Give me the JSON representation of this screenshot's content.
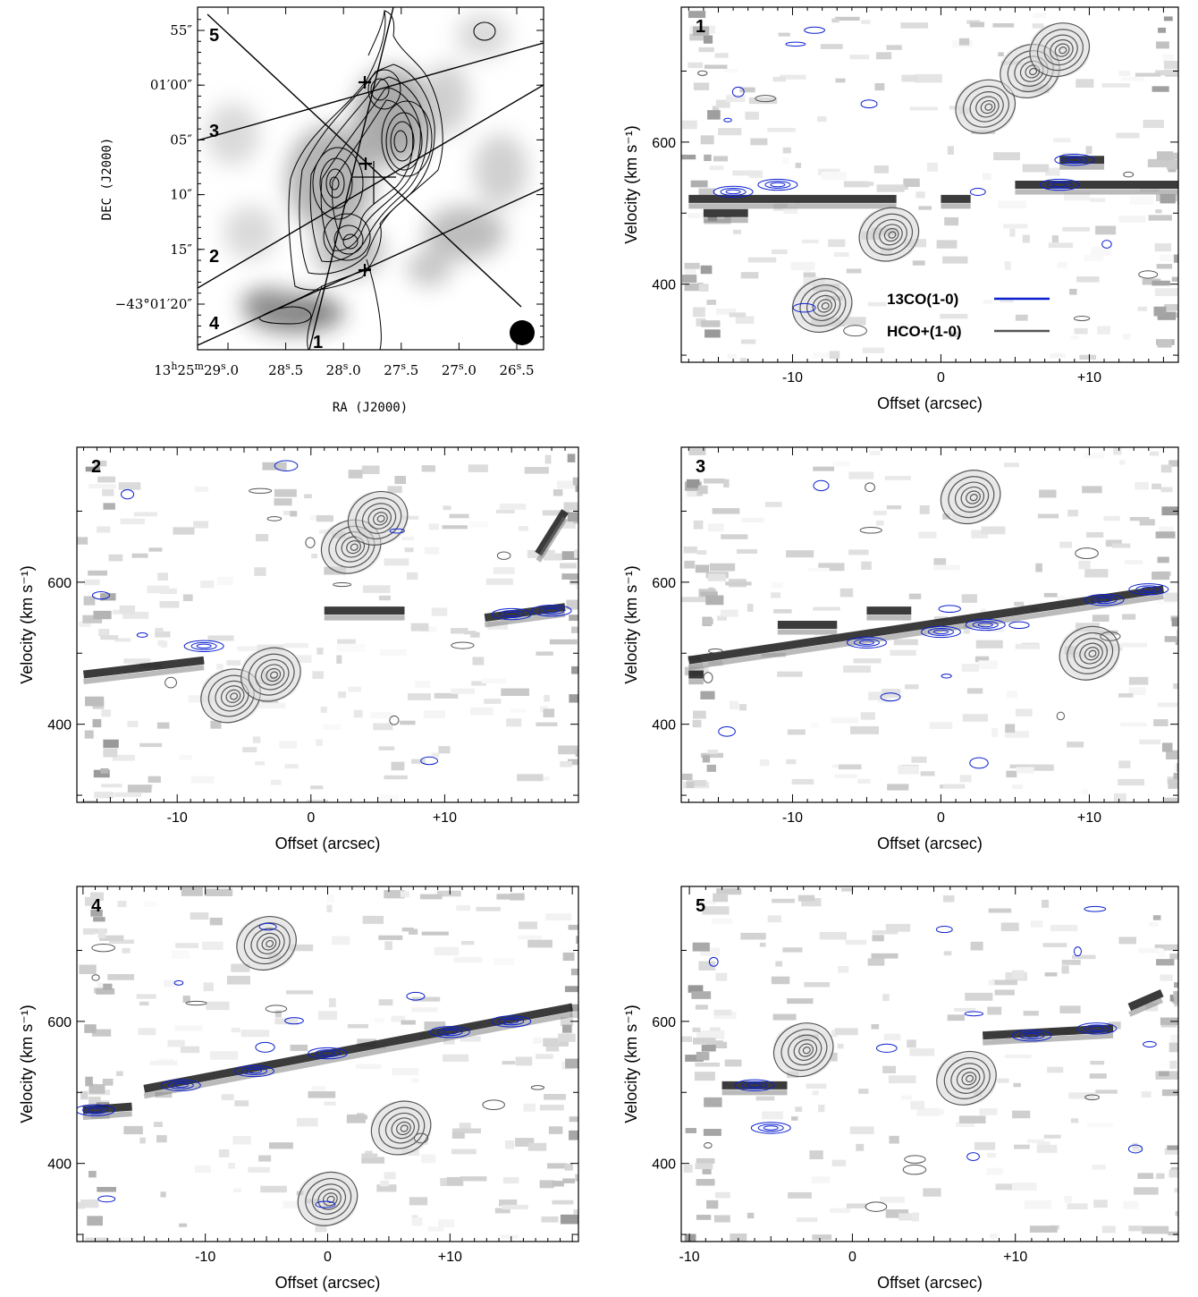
{
  "map_panel": {
    "xlabel": "RA (J2000)",
    "ylabel": "DEC (J2000)",
    "ra_ticks": [
      {
        "sup": "h",
        "prefix": "13",
        "mid": "25",
        "sup2": "m",
        "val": "29",
        "sup3": "s",
        "frac": ".0",
        "ra_s": 29.0
      },
      {
        "val": "28",
        "sup3": "s",
        "frac": ".5",
        "ra_s": 28.5
      },
      {
        "val": "28",
        "sup3": "s",
        "frac": ".0",
        "ra_s": 28.0
      },
      {
        "val": "27",
        "sup3": "s",
        "frac": ".5",
        "ra_s": 27.5
      },
      {
        "val": "27",
        "sup3": "s",
        "frac": ".0",
        "ra_s": 27.0
      },
      {
        "val": "26",
        "sup3": "s",
        "frac": ".5",
        "ra_s": 26.5
      }
    ],
    "dec_ticks": [
      {
        "label": "55″",
        "dec_as": 55
      },
      {
        "label": "01′00″",
        "dec_as": 60
      },
      {
        "label": "05″",
        "dec_as": 65
      },
      {
        "label": "10″",
        "dec_as": 70
      },
      {
        "label": "15″",
        "dec_as": 75
      },
      {
        "label": "−43°01′20″",
        "dec_as": 80
      }
    ],
    "slit_labels": [
      "1",
      "2",
      "3",
      "4",
      "5"
    ],
    "beam": "filled-circle"
  },
  "chart_data": [
    {
      "type": "heatmap",
      "panel": "1",
      "xlabel": "Offset (arcsec)",
      "ylabel": "Velocity (km s⁻¹)",
      "xlim": [
        -17.5,
        16
      ],
      "ylim": [
        290,
        790
      ],
      "xticks": [
        {
          "v": -10,
          "label": "-10"
        },
        {
          "v": 0,
          "label": "0"
        },
        {
          "v": 10,
          "label": "+10"
        }
      ],
      "yticks": [
        {
          "v": 400,
          "label": "400"
        },
        {
          "v": 600,
          "label": "600"
        }
      ],
      "legend": [
        {
          "name": "13CO(1-0)",
          "color": "#0a1fd0"
        },
        {
          "name": "HCO+(1-0)",
          "color": "#555555"
        }
      ],
      "grey_streaks": [
        [
          -17,
          520,
          -3,
          520
        ],
        [
          -16,
          500,
          -13,
          500
        ],
        [
          5,
          540,
          16,
          540
        ],
        [
          8,
          575,
          11,
          575
        ],
        [
          0,
          520,
          2,
          520
        ]
      ],
      "hco_emission": [
        [
          -8,
          370
        ],
        [
          -3.5,
          470
        ],
        [
          3,
          650
        ],
        [
          6,
          700
        ],
        [
          8,
          730
        ]
      ],
      "co_emission": [
        [
          -14,
          530
        ],
        [
          -11,
          540
        ],
        [
          8,
          540
        ],
        [
          9,
          575
        ]
      ]
    },
    {
      "type": "heatmap",
      "panel": "2",
      "xlabel": "Offset (arcsec)",
      "ylabel": "Velocity (km s⁻¹)",
      "xlim": [
        -17.5,
        20
      ],
      "ylim": [
        290,
        790
      ],
      "xticks": [
        {
          "v": -10,
          "label": "-10"
        },
        {
          "v": 0,
          "label": "0"
        },
        {
          "v": 10,
          "label": "+10"
        }
      ],
      "yticks": [
        {
          "v": 400,
          "label": "400"
        },
        {
          "v": 600,
          "label": "600"
        }
      ],
      "grey_streaks": [
        [
          -17,
          470,
          -8,
          490
        ],
        [
          13,
          550,
          19,
          565
        ],
        [
          17,
          640,
          19,
          700
        ],
        [
          1,
          560,
          7,
          560
        ]
      ],
      "hco_emission": [
        [
          -6,
          440
        ],
        [
          -3,
          470
        ],
        [
          3,
          650
        ],
        [
          5,
          690
        ]
      ],
      "co_emission": [
        [
          15,
          555
        ],
        [
          18,
          560
        ],
        [
          -8,
          510
        ]
      ]
    },
    {
      "type": "heatmap",
      "panel": "3",
      "xlabel": "Offset (arcsec)",
      "ylabel": "Velocity (km s⁻¹)",
      "xlim": [
        -17.5,
        16
      ],
      "ylim": [
        290,
        790
      ],
      "xticks": [
        {
          "v": -10,
          "label": "-10"
        },
        {
          "v": 0,
          "label": "0"
        },
        {
          "v": 10,
          "label": "+10"
        }
      ],
      "yticks": [
        {
          "v": 400,
          "label": "400"
        },
        {
          "v": 600,
          "label": "600"
        }
      ],
      "grey_streaks": [
        [
          -17,
          490,
          15,
          590
        ],
        [
          -17,
          470,
          -16,
          470
        ],
        [
          -11,
          540,
          -7,
          540
        ],
        [
          -5,
          560,
          -2,
          560
        ]
      ],
      "hco_emission": [
        [
          2,
          720
        ],
        [
          10,
          500
        ]
      ],
      "co_emission": [
        [
          -5,
          515
        ],
        [
          0,
          530
        ],
        [
          3,
          540
        ],
        [
          11,
          575
        ],
        [
          14,
          590
        ]
      ]
    },
    {
      "type": "heatmap",
      "panel": "4",
      "xlabel": "Offset (arcsec)",
      "ylabel": "Velocity (km s⁻¹)",
      "xlim": [
        -20.5,
        20.5
      ],
      "ylim": [
        290,
        790
      ],
      "xticks": [
        {
          "v": -10,
          "label": "-10"
        },
        {
          "v": 0,
          "label": "0"
        },
        {
          "v": 10,
          "label": "+10"
        }
      ],
      "yticks": [
        {
          "v": 400,
          "label": "400"
        },
        {
          "v": 600,
          "label": "600"
        }
      ],
      "grey_streaks": [
        [
          -15,
          505,
          20,
          620
        ],
        [
          -20,
          475,
          -16,
          480
        ]
      ],
      "hco_emission": [
        [
          -5,
          710
        ],
        [
          0,
          350
        ],
        [
          6,
          450
        ]
      ],
      "co_emission": [
        [
          -12,
          510
        ],
        [
          -6,
          530
        ],
        [
          0,
          555
        ],
        [
          10,
          585
        ],
        [
          15,
          600
        ],
        [
          -19,
          475
        ]
      ]
    },
    {
      "type": "heatmap",
      "panel": "5",
      "xlabel": "Offset (arcsec)",
      "ylabel": "Velocity (km s⁻¹)",
      "xlim": [
        -10.5,
        20
      ],
      "ylim": [
        290,
        790
      ],
      "xticks": [
        {
          "v": -10,
          "label": "-10"
        },
        {
          "v": 0,
          "label": "0"
        },
        {
          "v": 10,
          "label": "+10"
        }
      ],
      "yticks": [
        {
          "v": 400,
          "label": "400"
        },
        {
          "v": 600,
          "label": "600"
        }
      ],
      "grey_streaks": [
        [
          -8,
          510,
          -4,
          510
        ],
        [
          8,
          580,
          16,
          590
        ],
        [
          17,
          620,
          19,
          640
        ]
      ],
      "hco_emission": [
        [
          -3,
          560
        ],
        [
          7,
          520
        ]
      ],
      "co_emission": [
        [
          -6,
          510
        ],
        [
          11,
          580
        ],
        [
          15,
          590
        ],
        [
          -5,
          450
        ]
      ]
    }
  ]
}
